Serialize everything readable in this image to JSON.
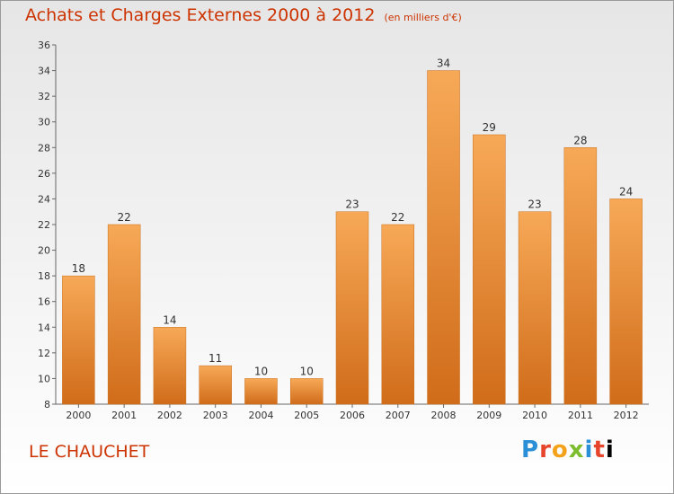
{
  "header": {
    "title": "Achats et Charges Externes 2000 à 2012",
    "unit": "(en milliers d'€)"
  },
  "footer": {
    "place": "LE CHAUCHET",
    "logo_letters": [
      "P",
      "r",
      "o",
      "x",
      "i",
      "t",
      "i"
    ]
  },
  "colors": {
    "title": "#cc3300",
    "bar_top": "#f7a957",
    "bar_bottom": "#d06c1a"
  },
  "chart_data": {
    "type": "bar",
    "title": "Achats et Charges Externes 2000 à 2012",
    "subtitle": "(en milliers d'€)",
    "categories": [
      "2000",
      "2001",
      "2002",
      "2003",
      "2004",
      "2005",
      "2006",
      "2007",
      "2008",
      "2009",
      "2010",
      "2011",
      "2012"
    ],
    "values": [
      18,
      22,
      14,
      11,
      10,
      10,
      23,
      22,
      34,
      29,
      23,
      28,
      24
    ],
    "ylim": [
      8,
      36
    ],
    "yticks": [
      8,
      10,
      12,
      14,
      16,
      18,
      20,
      22,
      24,
      26,
      28,
      30,
      32,
      34,
      36
    ],
    "grid": false,
    "xlabel": "",
    "ylabel": ""
  }
}
